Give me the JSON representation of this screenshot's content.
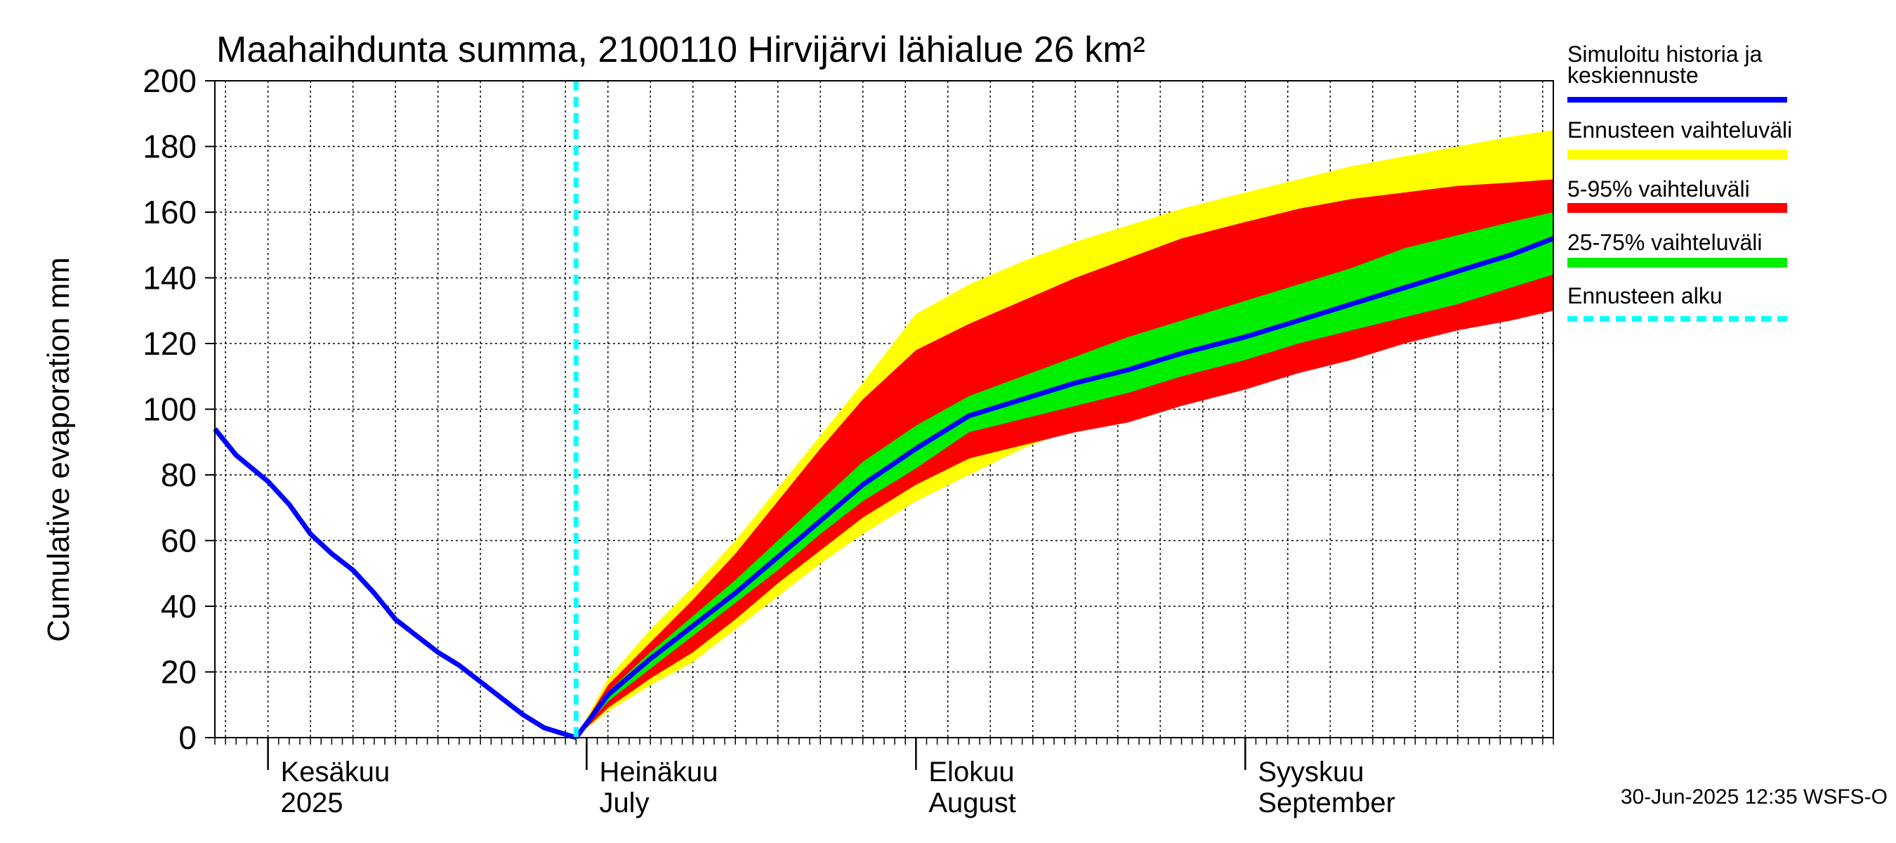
{
  "chart_data": {
    "type": "area",
    "title": "Maahaihdunta summa, 2100110 Hirvijärvi lähialue 26 km²",
    "ylabel": "Cumulative evaporation   mm",
    "ylim": [
      0,
      200
    ],
    "xlim": [
      "2025-05-27",
      "2025-09-30"
    ],
    "yticks": [
      0,
      20,
      40,
      60,
      80,
      100,
      120,
      140,
      160,
      180,
      200
    ],
    "grid": true,
    "forecast_start": "2025-06-30",
    "month_labels": [
      {
        "date": "2025-06-01",
        "line1": "Kesäkuu",
        "line2": "2025"
      },
      {
        "date": "2025-07-01",
        "line1": "Heinäkuu",
        "line2": "July"
      },
      {
        "date": "2025-08-01",
        "line1": "Elokuu",
        "line2": "August"
      },
      {
        "date": "2025-09-01",
        "line1": "Syyskuu",
        "line2": "September"
      }
    ],
    "x": [
      "2025-06-30",
      "2025-07-03",
      "2025-07-07",
      "2025-07-11",
      "2025-07-15",
      "2025-07-19",
      "2025-07-23",
      "2025-07-27",
      "2025-08-01",
      "2025-08-06",
      "2025-08-11",
      "2025-08-16",
      "2025-08-21",
      "2025-08-26",
      "2025-09-01",
      "2025-09-06",
      "2025-09-11",
      "2025-09-16",
      "2025-09-21",
      "2025-09-26",
      "2025-09-30"
    ],
    "series": [
      {
        "name": "Simuloitu historia ja keskiennuste",
        "color": "#0000ff",
        "history_x": [
          "2025-05-27",
          "2025-05-29",
          "2025-06-01",
          "2025-06-03",
          "2025-06-05",
          "2025-06-07",
          "2025-06-09",
          "2025-06-11",
          "2025-06-13",
          "2025-06-15",
          "2025-06-17",
          "2025-06-19",
          "2025-06-21",
          "2025-06-23",
          "2025-06-25",
          "2025-06-27",
          "2025-06-29",
          "2025-06-30"
        ],
        "history_values": [
          94,
          86,
          78,
          71,
          62,
          56,
          51,
          44,
          36,
          31,
          26,
          22,
          17,
          12,
          7,
          3,
          1,
          0
        ],
        "values": [
          0,
          13,
          24,
          34,
          44,
          55,
          66,
          77,
          88,
          98,
          103,
          108,
          112,
          117,
          122,
          127,
          132,
          137,
          142,
          147,
          152
        ]
      },
      {
        "name": "Ennusteen vaihteluväli",
        "color": "#ffff00",
        "lower": [
          0,
          8,
          16,
          23,
          33,
          43,
          53,
          62,
          72,
          80,
          88,
          94,
          99,
          105,
          111,
          117,
          121,
          126,
          129,
          132,
          134
        ],
        "upper": [
          0,
          18,
          33,
          46,
          60,
          76,
          92,
          108,
          129,
          138,
          145,
          151,
          156,
          161,
          166,
          170,
          174,
          177,
          180,
          183,
          185
        ]
      },
      {
        "name": "5-95% vaihteluväli",
        "color": "#ff0000",
        "lower": [
          0,
          9,
          18,
          26,
          36,
          47,
          57,
          67,
          77,
          85,
          89,
          93,
          96,
          101,
          106,
          111,
          115,
          120,
          124,
          127,
          130
        ],
        "upper": [
          0,
          16,
          29,
          42,
          56,
          72,
          88,
          103,
          118,
          126,
          133,
          140,
          146,
          152,
          157,
          161,
          164,
          166,
          168,
          169,
          170
        ]
      },
      {
        "name": "25-75% vaihteluväli",
        "color": "#00ee00",
        "lower": [
          0,
          11,
          21,
          31,
          41,
          51,
          62,
          72,
          82,
          93,
          97,
          101,
          105,
          110,
          115,
          120,
          124,
          128,
          132,
          137,
          141
        ],
        "upper": [
          0,
          14,
          26,
          37,
          48,
          60,
          72,
          84,
          95,
          104,
          110,
          116,
          122,
          127,
          133,
          138,
          143,
          149,
          153,
          157,
          160
        ]
      },
      {
        "name": "Ennusteen alku",
        "color": "#00ffff"
      }
    ]
  },
  "legend": {
    "items": [
      {
        "label": "Simuloitu historia ja",
        "label2": "keskiennuste",
        "color": "#0000ff"
      },
      {
        "label": "Ennusteen vaihteluväli",
        "color": "#ffff00"
      },
      {
        "label": "5-95% vaihteluväli",
        "color": "#ff0000"
      },
      {
        "label": "25-75% vaihteluväli",
        "color": "#00ee00"
      },
      {
        "label": "Ennusteen alku",
        "color": "#00ffff"
      }
    ]
  },
  "timestamp": "30-Jun-2025 12:35 WSFS-O"
}
